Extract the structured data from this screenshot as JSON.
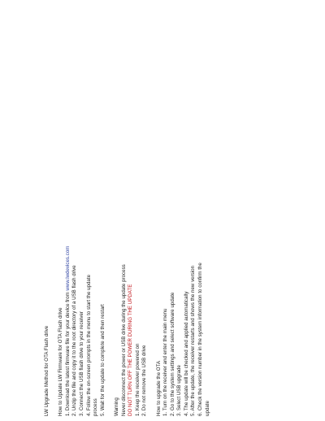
{
  "document": {
    "title": "LW Upgrade Method for OTA Flash drive",
    "intro": {
      "lead": "How to Update LW Firmware for OTA Flash drive",
      "steps": [
        "1. Download the latest firmware file for your device from",
        "2. Unzip the file and copy it to the root directory of a USB flash drive",
        "3. Connect the USB flash drive to your receiver",
        "4. Follow the on-screen prompts in the menu to start the update",
        "   process",
        "5. Wait for the update to complete and then restart"
      ],
      "download_url": "www.lwdevices.com"
    },
    "warning": {
      "heading": "Warning",
      "text": "Never disconnect the power or USB drive during the update process",
      "alert": "DO NOT TURN OFF THE POWER DURING THE UPDATE",
      "items": [
        "1. Keep the receiver powered on",
        "2. Do not remove the USB drive"
      ]
    },
    "check": {
      "heading": "How to upgrade the OTA",
      "steps": [
        "1. Turn on the receiver and enter the main menu",
        "2. Go to the system settings and select software update",
        "3. Select USB upgrade",
        "4. The update will be checked and applied automatically",
        "5. After the update, the receiver restarts and shows the new version",
        "6. Check the version number in the system information to confirm the",
        "   update"
      ]
    }
  }
}
